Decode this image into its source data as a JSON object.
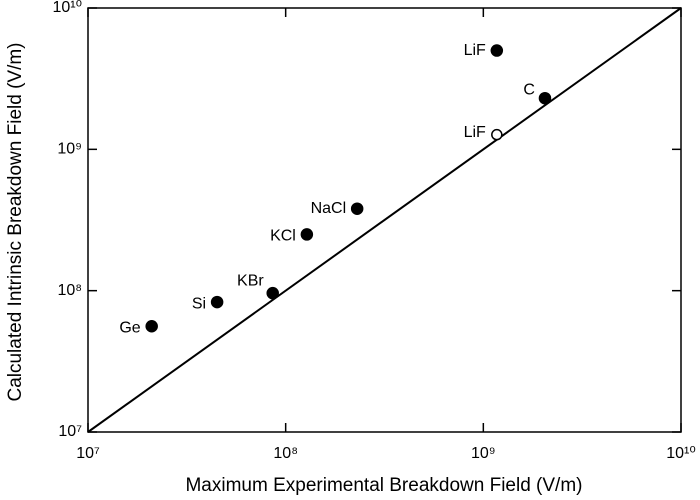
{
  "chart_data": {
    "type": "scatter",
    "xlabel": "Maximum Experimental Breakdown Field (V/m)",
    "ylabel": "Calculated Intrinsic Breakdown Field (V/m)",
    "labels": [
      "Ge",
      "Si",
      "KBr",
      "KCl",
      "NaCl",
      "LiF",
      "LiF",
      "C"
    ],
    "x": [
      21000000,
      45000000,
      86000000,
      128000000,
      230000000,
      1170000000,
      1170000000,
      2050000000
    ],
    "values": [
      56000000,
      83000000,
      96000000,
      250000000,
      380000000,
      1270000000,
      5000000000,
      2300000000
    ],
    "filled": [
      true,
      true,
      true,
      true,
      true,
      false,
      true,
      true
    ],
    "color": "#000000",
    "log_x": true,
    "log_y": true,
    "xlim": [
      10000000,
      10000000000
    ],
    "ylim": [
      10000000,
      10000000000
    ],
    "xticks": [
      {
        "value": 10000000,
        "label": "10⁷"
      },
      {
        "value": 100000000,
        "label": "10⁸"
      },
      {
        "value": 1000000000,
        "label": "10⁹"
      },
      {
        "value": 10000000000,
        "label": "10¹⁰"
      }
    ],
    "yticks": [
      {
        "value": 10000000,
        "label": "10⁷"
      },
      {
        "value": 100000000,
        "label": "10⁸"
      },
      {
        "value": 1000000000,
        "label": "10⁹"
      },
      {
        "value": 10000000000,
        "label": "10¹⁰"
      }
    ]
  }
}
